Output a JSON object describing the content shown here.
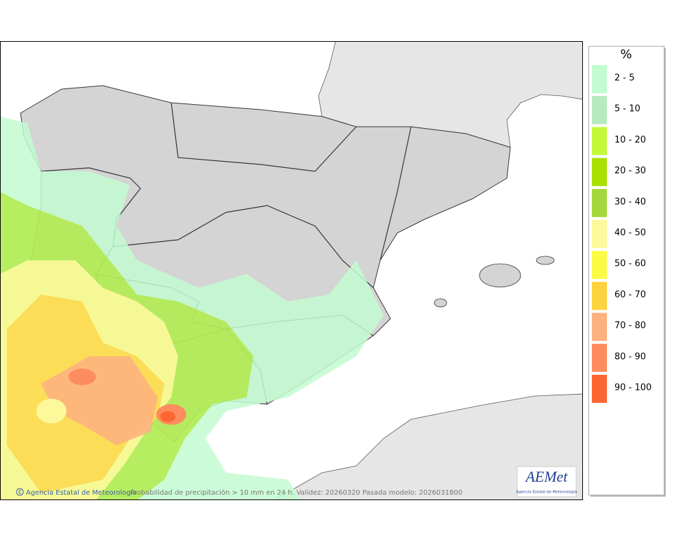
{
  "legend": {
    "title": "%",
    "items": [
      {
        "label": "2 - 5",
        "color": "#c2fcd0"
      },
      {
        "label": "5 - 10",
        "color": "#b5ebbd"
      },
      {
        "label": "10 - 20",
        "color": "#c2fa3a"
      },
      {
        "label": "20 - 30",
        "color": "#a8e000"
      },
      {
        "label": "30 - 40",
        "color": "#a3d83c"
      },
      {
        "label": "40 - 50",
        "color": "#fdf99b"
      },
      {
        "label": "50 - 60",
        "color": "#fdfa45"
      },
      {
        "label": "60 - 70",
        "color": "#fdd23f"
      },
      {
        "label": "70 - 80",
        "color": "#fdb080"
      },
      {
        "label": "80 - 90",
        "color": "#fd8c5e"
      },
      {
        "label": "90 - 100",
        "color": "#fd6633"
      }
    ]
  },
  "footer": {
    "credit": "Agencia Estatal de Meteorología",
    "caption": "Probabilidad de precipitación > 10 mm en 24 h. Validez: 20260320 Pasada modelo: 2026031800"
  },
  "logo": {
    "name": "AEMet",
    "subtitle": "Agencia Estatal de Meteorología"
  }
}
